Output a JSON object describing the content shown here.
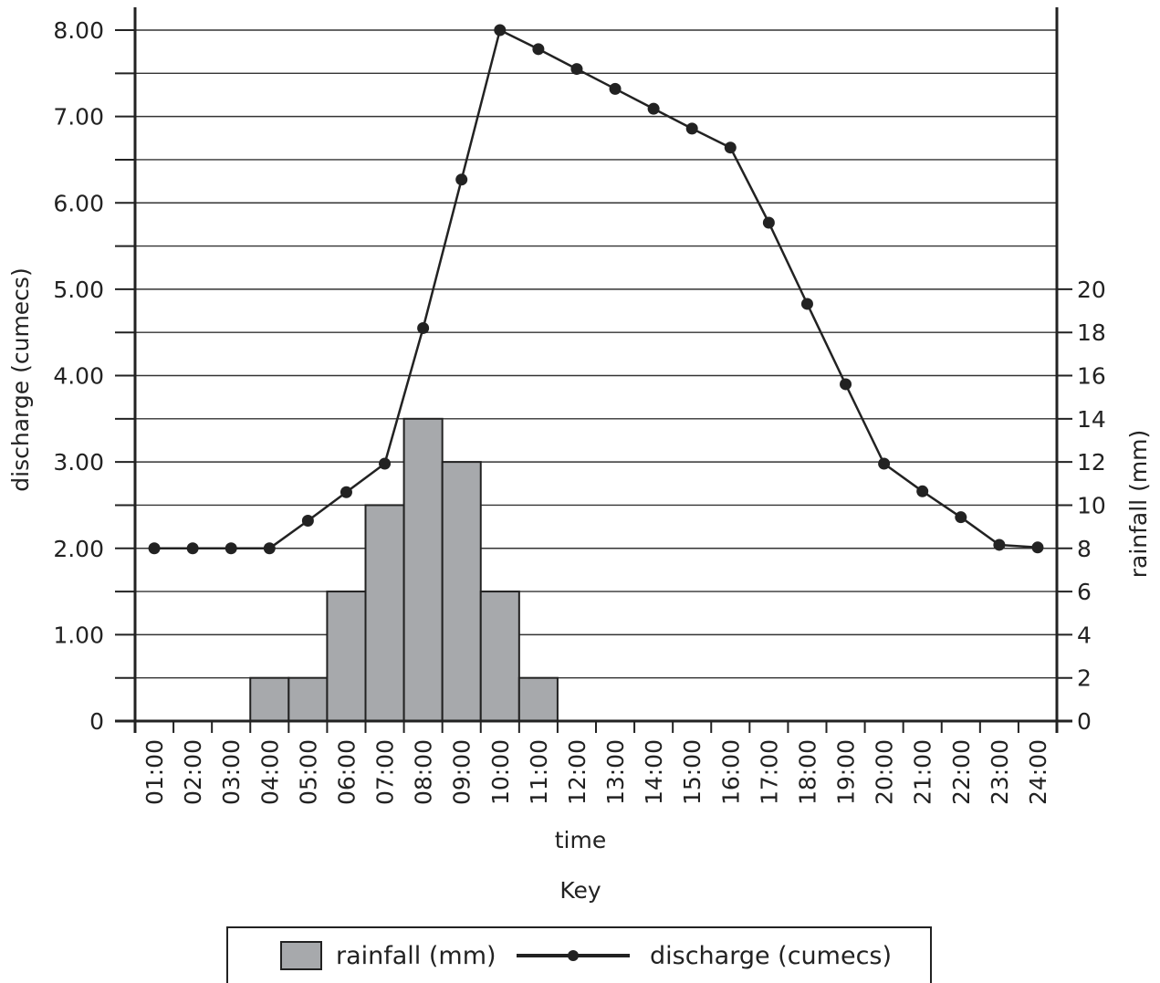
{
  "chart_data": {
    "type": "bar+line",
    "title": "",
    "xlabel": "time",
    "categories": [
      "01:00",
      "02:00",
      "03:00",
      "04:00",
      "05:00",
      "06:00",
      "07:00",
      "08:00",
      "09:00",
      "10:00",
      "11:00",
      "12:00",
      "13:00",
      "14:00",
      "15:00",
      "16:00",
      "17:00",
      "18:00",
      "19:00",
      "20:00",
      "21:00",
      "22:00",
      "23:00",
      "24:00"
    ],
    "left_axis": {
      "label": "discharge (cumecs)",
      "ylim": [
        0,
        8
      ],
      "ticks": [
        "0",
        "1.00",
        "2.00",
        "3.00",
        "4.00",
        "5.00",
        "6.00",
        "7.00",
        "8.00"
      ]
    },
    "right_axis": {
      "label": "rainfall (mm)",
      "ylim": [
        0,
        32
      ],
      "ticks": [
        "0",
        "2",
        "4",
        "6",
        "8",
        "10",
        "12",
        "14",
        "16",
        "18",
        "20"
      ]
    },
    "grid": true,
    "series": [
      {
        "name": "rainfall (mm)",
        "type": "bar",
        "axis": "right",
        "color": "#a7a9ac",
        "values": [
          0,
          0,
          0,
          2,
          2,
          6,
          10,
          14,
          12,
          6,
          2,
          0,
          0,
          0,
          0,
          0,
          0,
          0,
          0,
          0,
          0,
          0,
          0,
          0
        ]
      },
      {
        "name": "discharge (cumecs)",
        "type": "line",
        "axis": "left",
        "color": "#222222",
        "values": [
          2.0,
          2.0,
          2.0,
          2.0,
          2.32,
          2.65,
          2.98,
          4.55,
          6.27,
          8.0,
          7.78,
          7.55,
          7.32,
          7.09,
          6.86,
          6.64,
          5.77,
          4.83,
          3.9,
          2.98,
          2.66,
          2.36,
          2.04,
          2.01
        ]
      }
    ],
    "legend": {
      "title": "Key",
      "position": "bottom",
      "items": [
        "rainfall (mm)",
        "discharge (cumecs)"
      ]
    }
  }
}
